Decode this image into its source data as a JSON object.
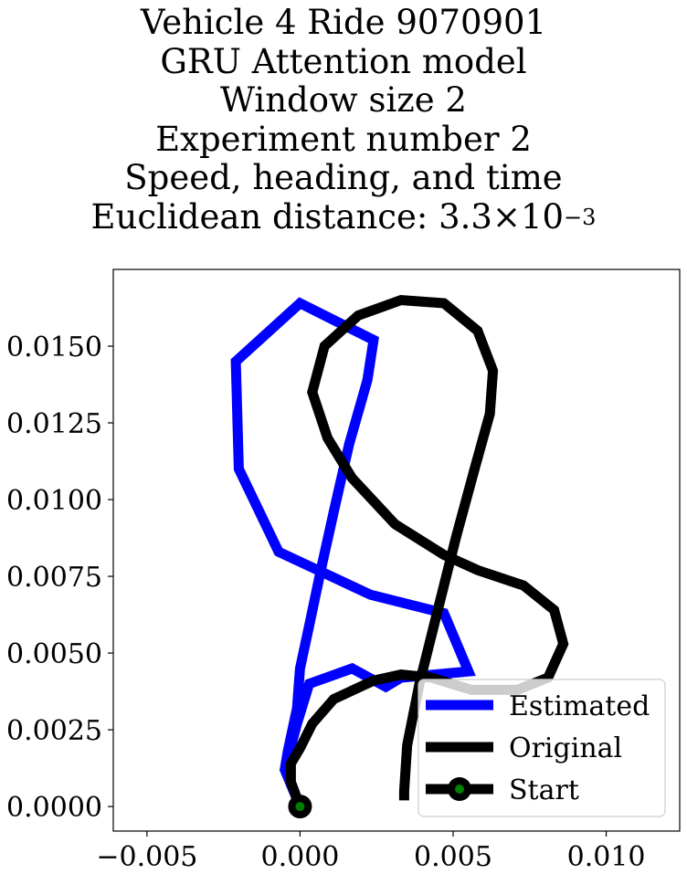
{
  "title": {
    "line1": "Vehicle 4 Ride 9070901",
    "line2": "GRU Attention model",
    "line3": "Window size 2",
    "line4": "Experiment number 2",
    "line5": "Speed, heading, and time",
    "line6_prefix": "Euclidean distance: 3.3×10",
    "line6_exp": "−3"
  },
  "chart_data": {
    "type": "line",
    "xlim": [
      -0.0061,
      0.0124
    ],
    "ylim": [
      -0.0008,
      0.0175
    ],
    "xticks": [
      -0.005,
      0.0,
      0.005,
      0.01
    ],
    "xtick_labels": [
      "−0.005",
      "0.000",
      "0.005",
      "0.010"
    ],
    "yticks": [
      0.0,
      0.0025,
      0.005,
      0.0075,
      0.01,
      0.0125,
      0.015
    ],
    "ytick_labels": [
      "0.0000",
      "0.0025",
      "0.0050",
      "0.0075",
      "0.0100",
      "0.0125",
      "0.0150"
    ],
    "grid": false,
    "legend_position": "lower right",
    "series": [
      {
        "name": "Estimated",
        "color": "#0000ff",
        "points": [
          [
            0.0,
            0.0
          ],
          [
            -0.0005,
            0.0012
          ],
          [
            -0.0004,
            0.0018
          ],
          [
            -0.0001,
            0.0032
          ],
          [
            0.0,
            0.0045
          ],
          [
            0.0003,
            0.0059
          ],
          [
            0.0007,
            0.0078
          ],
          [
            0.0011,
            0.0096
          ],
          [
            0.0016,
            0.0118
          ],
          [
            0.0022,
            0.0139
          ],
          [
            0.0024,
            0.0152
          ],
          [
            0.0,
            0.0164
          ],
          [
            -0.0021,
            0.0145
          ],
          [
            -0.002,
            0.011
          ],
          [
            -0.0007,
            0.0083
          ],
          [
            0.0023,
            0.0069
          ],
          [
            0.0047,
            0.0063
          ],
          [
            0.0055,
            0.0044
          ],
          [
            0.0033,
            0.0042
          ],
          [
            0.0028,
            0.0039
          ],
          [
            0.0017,
            0.0045
          ],
          [
            0.0003,
            0.004
          ],
          [
            -0.0001,
            0.0027
          ],
          [
            -0.0005,
            0.0012
          ],
          [
            0.0,
            0.0
          ]
        ]
      },
      {
        "name": "Original",
        "color": "#000000",
        "points": [
          [
            0.0,
            0.0
          ],
          [
            -0.0003,
            0.0008
          ],
          [
            -0.0003,
            0.0014
          ],
          [
            0.0,
            0.0019
          ],
          [
            0.0004,
            0.0027
          ],
          [
            0.0011,
            0.0035
          ],
          [
            0.0024,
            0.0041
          ],
          [
            0.0033,
            0.0043
          ],
          [
            0.0043,
            0.0042
          ],
          [
            0.0056,
            0.0038
          ],
          [
            0.0071,
            0.0038
          ],
          [
            0.0081,
            0.0042
          ],
          [
            0.0086,
            0.0053
          ],
          [
            0.0083,
            0.0064
          ],
          [
            0.0073,
            0.0072
          ],
          [
            0.0058,
            0.0077
          ],
          [
            0.0047,
            0.0082
          ],
          [
            0.0031,
            0.0092
          ],
          [
            0.0017,
            0.0107
          ],
          [
            0.0009,
            0.012
          ],
          [
            0.0004,
            0.0135
          ],
          [
            0.0008,
            0.015
          ],
          [
            0.0019,
            0.016
          ],
          [
            0.0033,
            0.0165
          ],
          [
            0.0047,
            0.0164
          ],
          [
            0.0058,
            0.0155
          ],
          [
            0.0063,
            0.0142
          ],
          [
            0.0062,
            0.0128
          ],
          [
            0.0057,
            0.011
          ],
          [
            0.0051,
            0.0088
          ],
          [
            0.0045,
            0.0064
          ],
          [
            0.0039,
            0.004
          ],
          [
            0.0035,
            0.002
          ],
          [
            0.0034,
            0.0005
          ],
          [
            0.0034,
            0.0002
          ]
        ]
      }
    ],
    "start": {
      "label": "Start",
      "point": [
        0.0,
        0.0
      ],
      "marker_color": "#008000",
      "edge_color": "#000000"
    },
    "legend": [
      "Estimated",
      "Original",
      "Start"
    ]
  }
}
